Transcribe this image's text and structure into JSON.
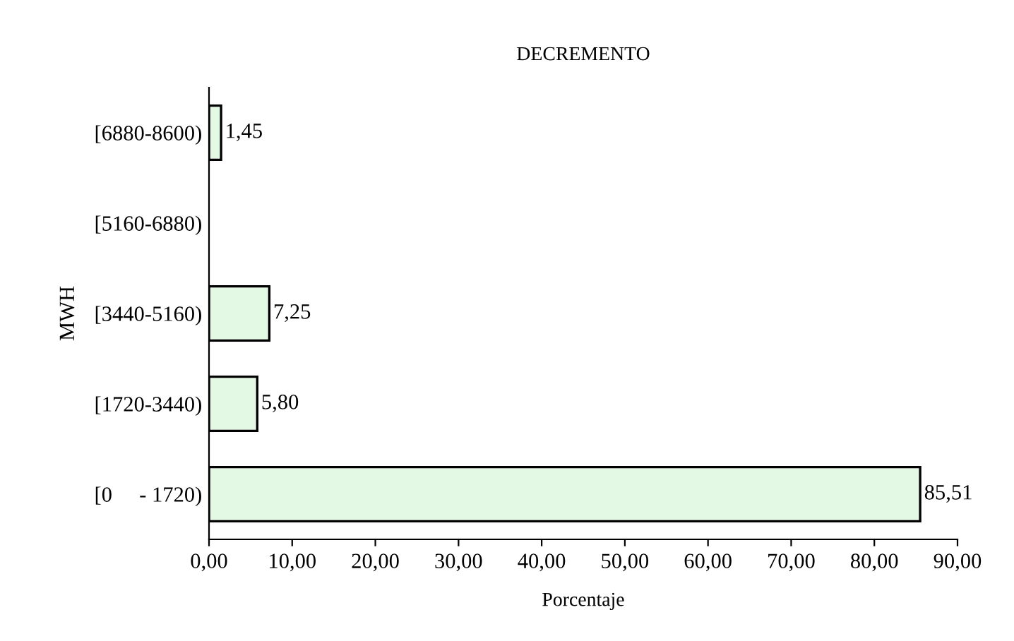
{
  "chart_data": {
    "type": "bar",
    "orientation": "horizontal",
    "title": "DECREMENTO",
    "xlabel": "Porcentaje",
    "ylabel": "MWH",
    "categories": [
      "[6880-8600)",
      "[5160-6880)",
      "[3440-5160)",
      "[1720-3440)",
      "[0     - 1720)"
    ],
    "values": [
      1.45,
      null,
      7.25,
      5.8,
      85.51
    ],
    "value_labels": [
      "1,45",
      null,
      "7,25",
      "5,80",
      "85,51"
    ],
    "color": "#e4f9e4",
    "xlim": [
      0,
      90
    ],
    "xticks": [
      {
        "value": 0,
        "label": "0,00"
      },
      {
        "value": 10,
        "label": "10,00"
      },
      {
        "value": 20,
        "label": "20,00"
      },
      {
        "value": 30,
        "label": "30,00"
      },
      {
        "value": 40,
        "label": "40,00"
      },
      {
        "value": 50,
        "label": "50,00"
      },
      {
        "value": 60,
        "label": "60,00"
      },
      {
        "value": 70,
        "label": "70,00"
      },
      {
        "value": 80,
        "label": "80,00"
      },
      {
        "value": 90,
        "label": "90,00"
      }
    ],
    "grid": false,
    "legend": false
  }
}
